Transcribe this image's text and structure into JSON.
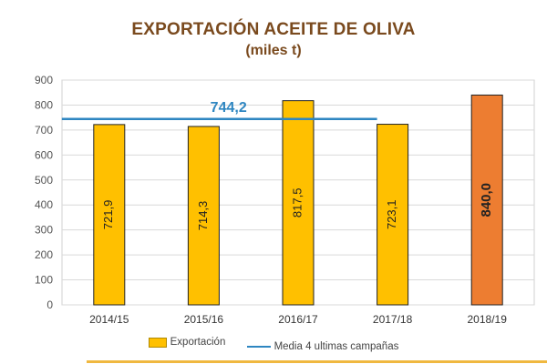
{
  "chart_data": {
    "type": "bar",
    "title": "EXPORTACIÓN ACEITE DE OLIVA",
    "subtitle": "(miles t)",
    "categories": [
      "2014/15",
      "2015/16",
      "2016/17",
      "2017/18",
      "2018/19"
    ],
    "series": [
      {
        "name": "Exportación",
        "values": [
          721.9,
          714.3,
          817.5,
          723.1,
          840.0
        ],
        "labels": [
          "721,9",
          "714,3",
          "817,5",
          "723,1",
          "840,0"
        ],
        "colors": [
          "#ffc000",
          "#ffc000",
          "#ffc000",
          "#ffc000",
          "#ed7d31"
        ]
      }
    ],
    "average_line": {
      "name": "Media 4 ultimas campañas",
      "value": 744.2,
      "label": "744,2",
      "color": "#2e86c1"
    },
    "ylim": [
      0,
      900
    ],
    "yticks": [
      0,
      100,
      200,
      300,
      400,
      500,
      600,
      700,
      800,
      900
    ],
    "grid": true,
    "legend_position": "bottom"
  }
}
